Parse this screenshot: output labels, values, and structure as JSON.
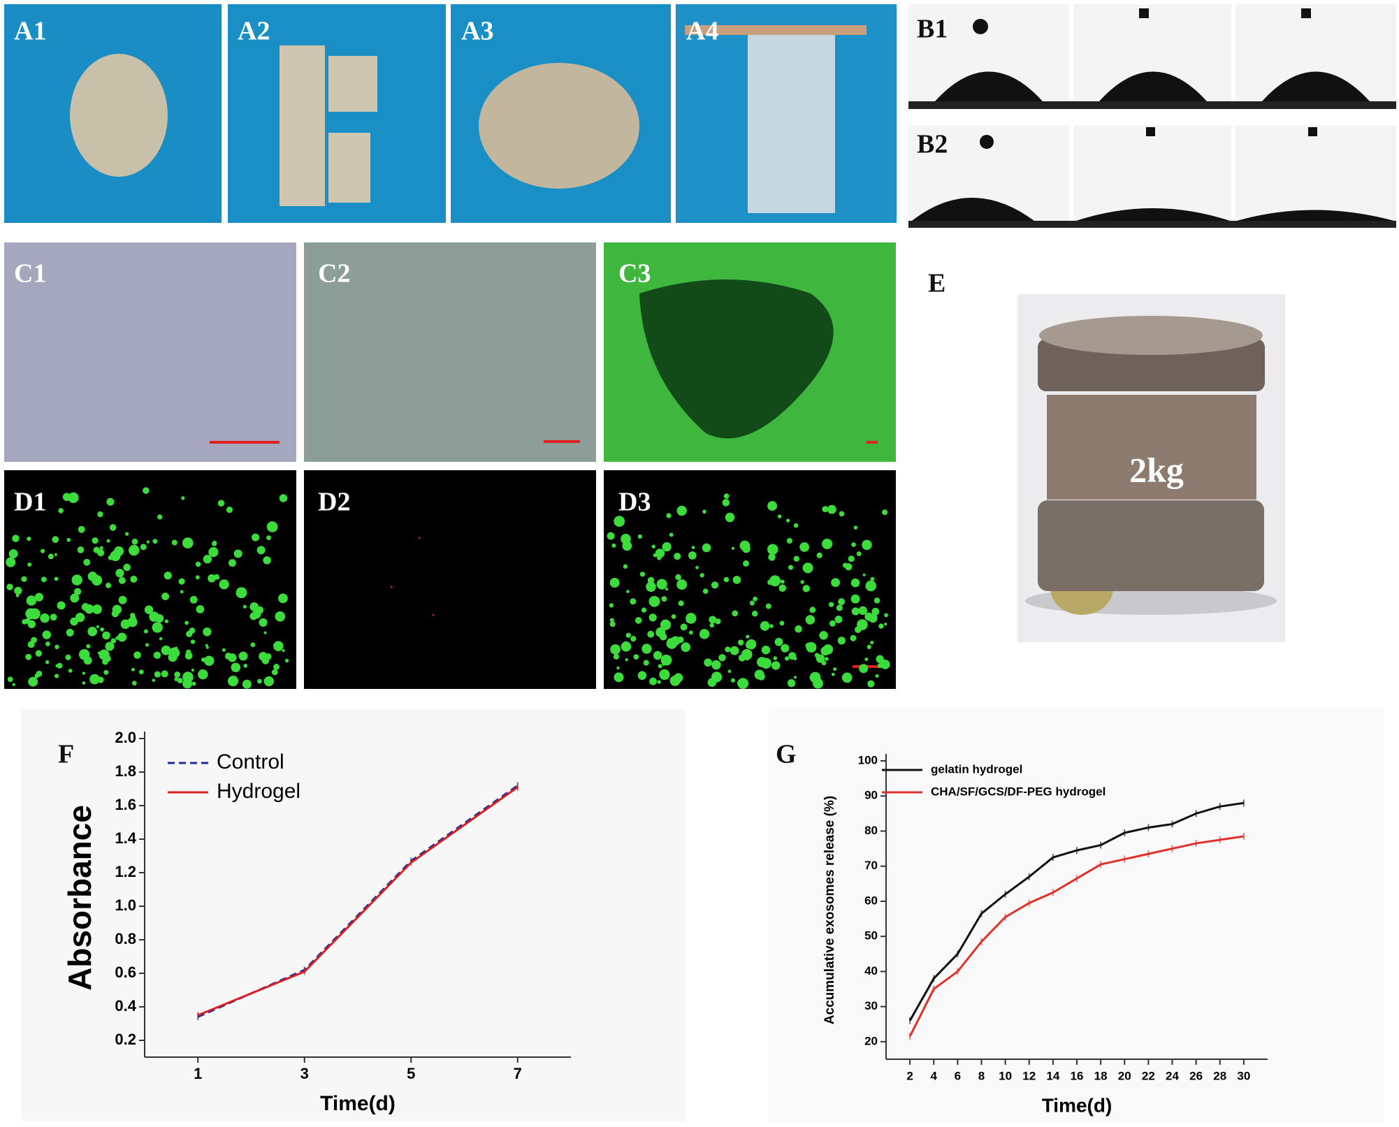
{
  "panels": [
    "A1",
    "A2",
    "A3",
    "A4",
    "B1",
    "B2",
    "C1",
    "C2",
    "C3",
    "D1",
    "D2",
    "D3",
    "E",
    "F",
    "G"
  ],
  "weight_label": "2kg",
  "chart_data": [
    {
      "type": "line",
      "ylabel": "Absorbance",
      "xlabel": "Time(d)",
      "x": [
        1,
        3,
        5,
        7
      ],
      "series": [
        {
          "name": "Control",
          "color": "#1f2a9e",
          "line_style": "dashed",
          "values": [
            0.34,
            0.62,
            1.27,
            1.72
          ]
        },
        {
          "name": "Hydrogel",
          "color": "#d42020",
          "line_style": "solid",
          "values": [
            0.35,
            0.61,
            1.26,
            1.71
          ]
        }
      ],
      "xlim": [
        0,
        8
      ],
      "xticks": [
        1,
        3,
        5,
        7
      ],
      "ylim": [
        0.1,
        2.0
      ],
      "yticks": [
        0.2,
        0.4,
        0.6,
        0.8,
        {
          "value": 1.0,
          "label": "1.0"
        },
        1.2,
        1.4,
        1.6,
        1.8,
        {
          "value": 2.0,
          "label": "2.0"
        }
      ],
      "legend": "upper left"
    },
    {
      "type": "line",
      "ylabel": "Accumulative exosomes release (%)",
      "xlabel": "Time(d)",
      "x": [
        2,
        4,
        6,
        8,
        10,
        12,
        14,
        16,
        18,
        20,
        22,
        24,
        26,
        28,
        30
      ],
      "series": [
        {
          "name": "gelatin hydrogel",
          "color": "#111111",
          "line_style": "solid",
          "values": [
            26,
            38,
            45,
            56.5,
            62,
            67,
            72.5,
            74.5,
            76,
            79.5,
            81,
            82,
            85,
            87,
            88
          ]
        },
        {
          "name": "CHA/SF/GCS/DF-PEG hydrogel",
          "color": "#e0302a",
          "line_style": "solid",
          "values": [
            21.5,
            35,
            40,
            48.5,
            55.5,
            59.5,
            62.5,
            66.5,
            70.5,
            72,
            73.5,
            75,
            76.5,
            77.5,
            78.5
          ]
        }
      ],
      "xlim": [
        0,
        32
      ],
      "xticks": [
        2,
        4,
        6,
        8,
        10,
        12,
        14,
        16,
        18,
        20,
        22,
        24,
        26,
        28,
        30
      ],
      "ylim": [
        15,
        100
      ],
      "yticks": [
        20,
        30,
        40,
        50,
        60,
        70,
        80,
        90,
        100
      ],
      "legend": "upper left"
    }
  ]
}
